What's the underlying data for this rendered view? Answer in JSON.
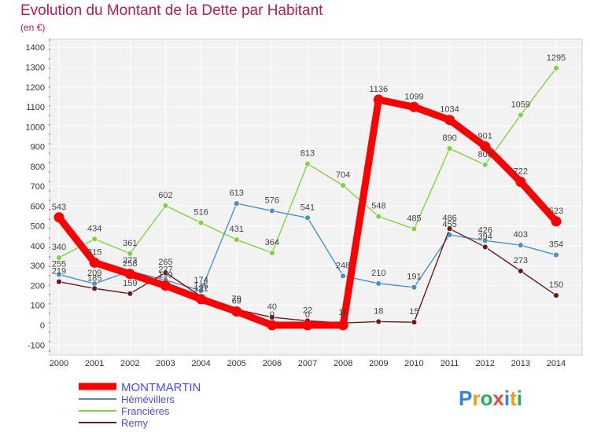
{
  "chart_data": {
    "type": "line",
    "title": "Evolution du Montant de la Dette par Habitant",
    "subtitle": "(en €)",
    "x": [
      "2000",
      "2001",
      "2002",
      "2003",
      "2004",
      "2005",
      "2006",
      "2007",
      "2008",
      "2009",
      "2010",
      "2011",
      "2012",
      "2013",
      "2014"
    ],
    "y_ticks": [
      -100,
      0,
      100,
      200,
      300,
      400,
      500,
      600,
      700,
      800,
      900,
      1000,
      1100,
      1200,
      1300,
      1400
    ],
    "ylim": [
      -100,
      1400
    ],
    "grid": true,
    "legend_position": "bottom-left",
    "series": [
      {
        "name": "MONTMARTIN",
        "color": "#ff0000",
        "values": [
          543,
          315,
          258,
          199,
          131,
          69,
          0,
          0,
          0,
          1136,
          1099,
          1034,
          901,
          722,
          523
        ]
      },
      {
        "name": "Hémévillers",
        "color": "#4a90c8",
        "values": [
          255,
          209,
          273,
          227,
          174,
          613,
          576,
          541,
          248,
          210,
          191,
          455,
          426,
          403,
          354
        ]
      },
      {
        "name": "Francières",
        "color": "#7fd33f",
        "values": [
          340,
          434,
          361,
          602,
          516,
          431,
          364,
          813,
          704,
          548,
          485,
          890,
          808,
          1059,
          1295
        ]
      },
      {
        "name": "Remy",
        "color": "#6b1a1a",
        "values": [
          219,
          185,
          159,
          265,
          145,
          79,
          40,
          22,
          11,
          18,
          15,
          486,
          394,
          273,
          150
        ]
      }
    ],
    "data_labels": [
      [
        "543",
        "315",
        "258",
        "199",
        "131",
        "69",
        "0",
        "0",
        "0",
        "1136",
        "1099",
        "1034",
        "901",
        "722",
        "523"
      ],
      [
        "255",
        "209",
        "273",
        "227",
        "174",
        "613",
        "576",
        "541",
        "248",
        "210",
        "191",
        "455",
        "426",
        "403",
        "354"
      ],
      [
        "340",
        "434",
        "361",
        "602",
        "516",
        "431",
        "364",
        "813",
        "704",
        "548",
        "485",
        "890",
        "808",
        "1059",
        "1295"
      ],
      [
        "219",
        "185",
        "159",
        "265",
        "145",
        "79",
        "40",
        "22",
        "11",
        "18",
        "15",
        "486",
        "394",
        "273",
        "150"
      ]
    ]
  },
  "brand": {
    "logo_text": "Proxiti"
  }
}
